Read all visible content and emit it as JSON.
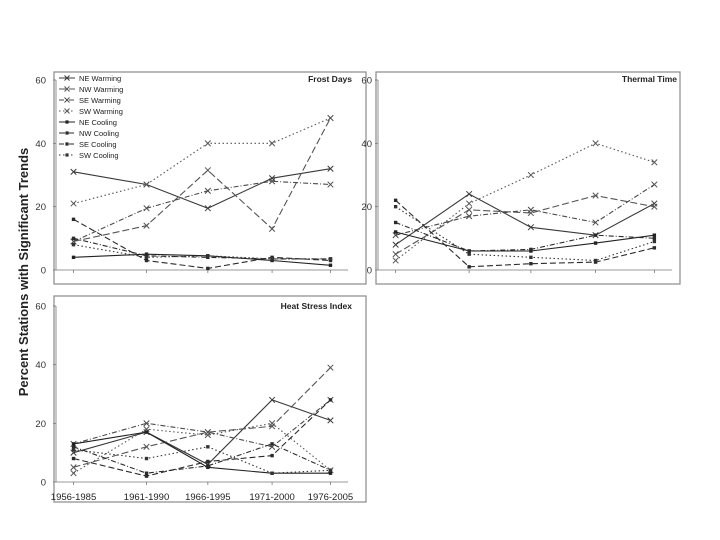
{
  "figure": {
    "ylabel": "Percent Stations with Significant Trends"
  },
  "chart_data": [
    {
      "type": "line",
      "title": "Frost Days",
      "categories": [
        "1956-1985",
        "1961-1990",
        "1966-1995",
        "1971-2000",
        "1976-2005"
      ],
      "ylim": [
        0,
        60
      ],
      "yticks": [
        0,
        20,
        40,
        60
      ],
      "show_xticks": false,
      "legend": "top-left",
      "series": [
        {
          "name": "NE Warming",
          "values": [
            31,
            27,
            19.5,
            29,
            32
          ]
        },
        {
          "name": "NW Warming",
          "values": [
            9,
            14,
            31.5,
            13,
            48
          ]
        },
        {
          "name": "SE Warming",
          "values": [
            9,
            19.5,
            25,
            28,
            27
          ]
        },
        {
          "name": "SW Warming",
          "values": [
            21,
            27,
            40,
            40,
            48
          ]
        },
        {
          "name": "NE Cooling",
          "values": [
            4,
            5,
            4.5,
            3,
            1.5
          ]
        },
        {
          "name": "NW Cooling",
          "values": [
            16,
            3,
            0.5,
            4,
            3
          ]
        },
        {
          "name": "SE Cooling",
          "values": [
            10,
            4.5,
            4,
            3.5,
            3.5
          ]
        },
        {
          "name": "SW Cooling",
          "values": [
            8,
            4,
            4.5,
            3.5,
            3.5
          ]
        }
      ]
    },
    {
      "type": "line",
      "title": "Thermal Time",
      "categories": [
        "1956-1985",
        "1961-1990",
        "1966-1995",
        "1971-2000",
        "1976-2005"
      ],
      "ylim": [
        0,
        60
      ],
      "yticks": [
        0,
        20,
        40,
        60
      ],
      "show_xticks": false,
      "series": [
        {
          "name": "NE Warming",
          "values": [
            8,
            24,
            13.5,
            11,
            21
          ]
        },
        {
          "name": "NW Warming",
          "values": [
            5,
            19,
            18,
            23.5,
            20
          ]
        },
        {
          "name": "SE Warming",
          "values": [
            11,
            17,
            19,
            15,
            27
          ]
        },
        {
          "name": "SW Warming",
          "values": [
            3,
            21,
            30,
            40,
            34
          ]
        },
        {
          "name": "NE Cooling",
          "values": [
            12,
            6,
            6,
            8.5,
            11
          ]
        },
        {
          "name": "NW Cooling",
          "values": [
            22,
            1,
            2,
            2.5,
            7
          ]
        },
        {
          "name": "SE Cooling",
          "values": [
            15,
            6,
            6.5,
            11,
            10
          ]
        },
        {
          "name": "SW Cooling",
          "values": [
            20,
            5,
            4,
            3,
            9
          ]
        }
      ]
    },
    {
      "type": "line",
      "title": "Heat Stress Index",
      "categories": [
        "1956-1985",
        "1961-1990",
        "1966-1995",
        "1971-2000",
        "1976-2005"
      ],
      "ylim": [
        0,
        60
      ],
      "yticks": [
        0,
        20,
        40,
        60
      ],
      "show_xticks": true,
      "series": [
        {
          "name": "NE Warming",
          "values": [
            10,
            17,
            6,
            28,
            21
          ]
        },
        {
          "name": "NW Warming",
          "values": [
            5,
            12,
            17,
            19,
            39
          ]
        },
        {
          "name": "SE Warming",
          "values": [
            13,
            20,
            17,
            12,
            28
          ]
        },
        {
          "name": "SW Warming",
          "values": [
            3,
            18,
            16,
            20,
            4
          ]
        },
        {
          "name": "NE Cooling",
          "values": [
            13,
            17,
            5,
            3,
            3
          ]
        },
        {
          "name": "NW Cooling",
          "values": [
            8,
            2,
            7,
            9,
            28
          ]
        },
        {
          "name": "SE Cooling",
          "values": [
            12,
            3,
            5.5,
            13,
            4
          ]
        },
        {
          "name": "SW Cooling",
          "values": [
            11,
            8,
            12,
            3,
            4
          ]
        }
      ]
    }
  ],
  "series_styles": [
    {
      "name": "NE Warming",
      "color": "#3a3a3a",
      "dash": "",
      "marker": "x"
    },
    {
      "name": "NW Warming",
      "color": "#555555",
      "dash": "7 3",
      "marker": "x"
    },
    {
      "name": "SE Warming",
      "color": "#4a4a4a",
      "dash": "5 2 1 2",
      "marker": "x"
    },
    {
      "name": "SW Warming",
      "color": "#555555",
      "dash": "1.5 2.5",
      "marker": "x"
    },
    {
      "name": "NE Cooling",
      "color": "#222222",
      "dash": "",
      "marker": "dot"
    },
    {
      "name": "NW Cooling",
      "color": "#2a2a2a",
      "dash": "6 3",
      "marker": "dot"
    },
    {
      "name": "SE Cooling",
      "color": "#2a2a2a",
      "dash": "5 2 1 2",
      "marker": "dot"
    },
    {
      "name": "SW Cooling",
      "color": "#333333",
      "dash": "1.5 2.5",
      "marker": "dot"
    }
  ],
  "legend": {
    "labels": [
      "NE  Warming",
      "NW  Warming",
      "SE  Warming",
      "SW  Warming",
      "NE  Cooling",
      "NW  Cooling",
      "SE  Cooling",
      "SW  Cooling"
    ]
  },
  "colors": {
    "frame": "#8a8a8a",
    "background": "#ffffff"
  }
}
